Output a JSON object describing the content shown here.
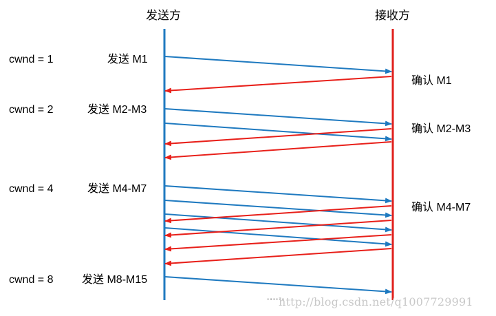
{
  "sender_label": "发送方",
  "receiver_label": "接收方",
  "cwnd_labels": [
    "cwnd = 1",
    "cwnd = 2",
    "cwnd = 4",
    "cwnd = 8"
  ],
  "send_labels": [
    "发送 M1",
    "发送 M2-M3",
    "发送 M4-M7",
    "发送 M8-M15"
  ],
  "ack_labels": [
    "确认 M1",
    "确认 M2-M3",
    "确认 M4-M7"
  ],
  "ellipsis": "......",
  "watermark": "http://blog.csdn.net/q1007729991",
  "colors": {
    "sender_line": "#1f7ac0",
    "receiver_line": "#e0201c",
    "data_arrow": "#1f7ac0",
    "ack_arrow": "#e8201a"
  },
  "rounds": [
    {
      "window": 1,
      "segments": 1,
      "acks": 1
    },
    {
      "window": 2,
      "segments": 2,
      "acks": 2
    },
    {
      "window": 4,
      "segments": 4,
      "acks": 4
    },
    {
      "window": 8,
      "segments": 1,
      "acks": 0
    }
  ]
}
